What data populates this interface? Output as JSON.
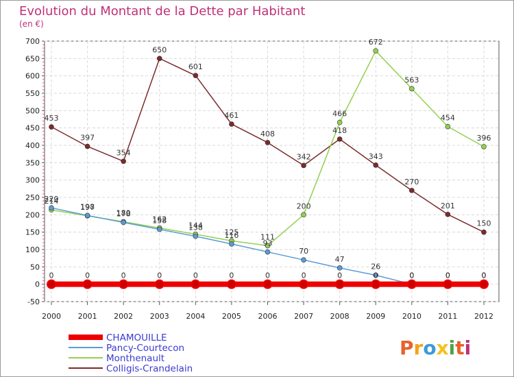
{
  "title": "Evolution du Montant de la Dette par Habitant",
  "subtitle": "(en €)",
  "logo": {
    "text": "Proxiti",
    "colors": [
      "#e8612c",
      "#f5a21b",
      "#3b9ad9",
      "#f5c21b",
      "#4aa34a",
      "#e8612c",
      "#c0307a"
    ]
  },
  "chart_data": {
    "type": "line",
    "title": "Evolution du Montant de la Dette par Habitant",
    "ylabel": "(en €)",
    "x": [
      "2000",
      "2001",
      "2002",
      "2003",
      "2004",
      "2005",
      "2006",
      "2007",
      "2008",
      "2009",
      "2010",
      "2011",
      "2012"
    ],
    "ylim": [
      -50,
      700
    ],
    "yticks": [
      "-50",
      "0",
      "50",
      "100",
      "150",
      "200",
      "250",
      "300",
      "350",
      "400",
      "450",
      "500",
      "550",
      "600",
      "650",
      "700"
    ],
    "grid": true,
    "legend": "bottom-left",
    "series": [
      {
        "name": "CHAMOUILLE",
        "color": "#ee0000",
        "values": [
          0,
          0,
          0,
          0,
          0,
          0,
          0,
          0,
          0,
          0,
          0,
          0,
          0
        ],
        "labels": [
          "0",
          "0",
          "0",
          "0",
          "0",
          "0",
          "0",
          "0",
          "0",
          "0",
          "0",
          "0",
          "0"
        ]
      },
      {
        "name": "Pancy-Courtecon",
        "color": "#5b9bd5",
        "values": [
          220,
          198,
          178,
          158,
          138,
          116,
          93,
          70,
          47,
          26,
          0,
          0,
          0
        ],
        "labels": [
          "220",
          "198",
          "178",
          "158",
          "138",
          "116",
          "93",
          "70",
          "47",
          "26",
          "0",
          "0",
          "0"
        ]
      },
      {
        "name": "Monthenault",
        "color": "#92d050",
        "values": [
          214,
          197,
          180,
          162,
          144,
          125,
          111,
          200,
          466,
          672,
          563,
          454,
          396
        ],
        "labels": [
          "214",
          "197",
          "180",
          "162",
          "144",
          "125",
          "111",
          "200",
          "466",
          "672",
          "563",
          "454",
          "396"
        ]
      },
      {
        "name": "Colligis-Crandelain",
        "color": "#7b2b2b",
        "values": [
          453,
          397,
          354,
          650,
          601,
          461,
          408,
          342,
          418,
          343,
          270,
          201,
          150
        ],
        "labels": [
          "453",
          "397",
          "354",
          "650",
          "601",
          "461",
          "408",
          "342",
          "418",
          "343",
          "270",
          "201",
          "150"
        ]
      }
    ]
  }
}
